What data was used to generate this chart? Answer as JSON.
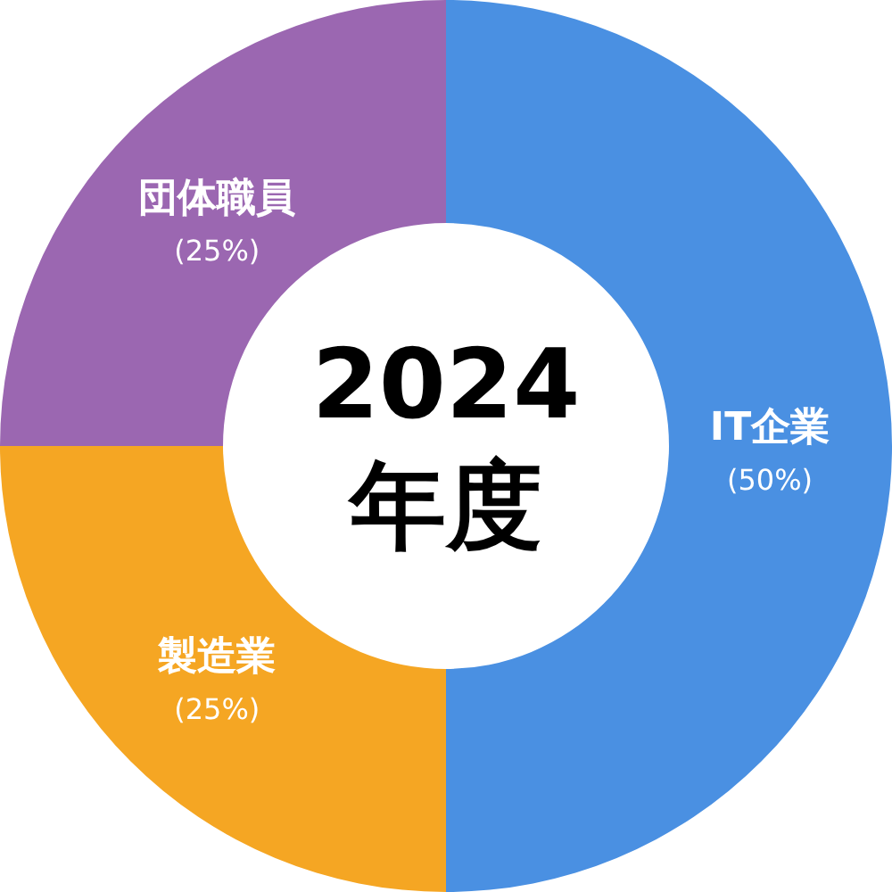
{
  "chart_data": {
    "type": "donut",
    "title": "2024\n年度",
    "categories": [
      "IT企業",
      "製造業",
      "団体職員"
    ],
    "values": [
      50,
      25,
      25
    ],
    "colors": [
      "#4a90e2",
      "#f5a623",
      "#9b67b1"
    ],
    "value_labels": [
      "(50%)",
      "(25%)",
      "(25%)"
    ],
    "legend": false
  }
}
